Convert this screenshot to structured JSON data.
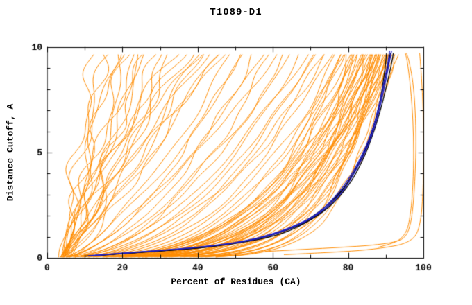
{
  "chart_data": {
    "type": "line",
    "title": "T1089-D1",
    "xlabel": "Percent of Residues (CA)",
    "ylabel": "Distance Cutoff, A",
    "xlim": [
      0,
      100
    ],
    "ylim": [
      0,
      10
    ],
    "x_ticks": [
      0,
      20,
      40,
      60,
      80,
      100
    ],
    "x_minor_ticks": [
      10,
      30,
      50,
      70,
      90
    ],
    "y_ticks": [
      0,
      5,
      10
    ],
    "y_minor_ticks": [
      1,
      2,
      3,
      4,
      6,
      7,
      8,
      9
    ],
    "grid": false,
    "legend": "none",
    "colors": {
      "orange": "#FF8C00",
      "black": "#000000",
      "blue": "#2121CC",
      "axis": "#000000",
      "background": "#FFFFFF"
    },
    "curves": [
      {
        "a": 3,
        "b": 13,
        "q": 1.0
      },
      {
        "a": 4,
        "b": 15,
        "q": 0.85
      },
      {
        "a": 3,
        "b": 16,
        "q": 1.2
      },
      {
        "a": 5,
        "b": 18,
        "q": 0.9
      },
      {
        "a": 3,
        "b": 19,
        "q": 1.1
      },
      {
        "a": 4,
        "b": 21,
        "q": 0.8
      },
      {
        "a": 3,
        "b": 22,
        "q": 1.0
      },
      {
        "a": 5,
        "b": 24,
        "q": 1.25
      },
      {
        "a": 4,
        "b": 25,
        "q": 0.75
      },
      {
        "a": 3,
        "b": 27,
        "q": 0.95
      },
      {
        "a": 4,
        "b": 28,
        "q": 1.15
      },
      {
        "a": 3,
        "b": 30,
        "q": 0.85
      },
      {
        "a": 5,
        "b": 31,
        "q": 1.05
      },
      {
        "a": 4,
        "b": 33,
        "q": 0.8
      },
      {
        "a": 3,
        "b": 35,
        "q": 1.2
      },
      {
        "a": 4,
        "b": 36,
        "q": 0.9
      },
      {
        "a": 3,
        "b": 38,
        "q": 1.0
      },
      {
        "a": 5,
        "b": 40,
        "q": 0.78
      },
      {
        "a": 4,
        "b": 41,
        "q": 1.1
      },
      {
        "a": 3,
        "b": 43,
        "q": 0.88
      },
      {
        "a": 4,
        "b": 44,
        "q": 1.0
      },
      {
        "a": 3,
        "b": 46,
        "q": 0.8
      },
      {
        "a": 5,
        "b": 47,
        "q": 1.15
      },
      {
        "a": 4,
        "b": 48,
        "q": 0.92
      },
      {
        "a": 3,
        "b": 50,
        "q": 0.7
      },
      {
        "a": 4,
        "b": 52,
        "q": 0.6
      },
      {
        "a": 3,
        "b": 54,
        "q": 0.72
      },
      {
        "a": 4,
        "b": 56,
        "q": 0.55
      },
      {
        "a": 3,
        "b": 58,
        "q": 0.65
      },
      {
        "a": 4,
        "b": 60,
        "q": 0.5
      },
      {
        "a": 3,
        "b": 62,
        "q": 0.68
      },
      {
        "a": 4,
        "b": 64,
        "q": 0.52
      },
      {
        "a": 3,
        "b": 66,
        "q": 0.6
      },
      {
        "a": 4,
        "b": 68,
        "q": 0.48
      },
      {
        "a": 3,
        "b": 70,
        "q": 0.55
      },
      {
        "a": 4,
        "b": 72,
        "q": 0.45
      },
      {
        "a": 3,
        "b": 73,
        "q": 0.5
      },
      {
        "a": 4,
        "b": 74,
        "q": 0.42
      },
      {
        "a": 3,
        "b": 75,
        "q": 0.47
      },
      {
        "a": 4,
        "b": 76,
        "q": 0.4
      },
      {
        "a": 3,
        "b": 78,
        "q": 0.38
      },
      {
        "a": 4,
        "b": 78.5,
        "q": 0.3
      },
      {
        "a": 3,
        "b": 79,
        "q": 0.34
      },
      {
        "a": 4,
        "b": 79.5,
        "q": 0.26
      },
      {
        "a": 3,
        "b": 80,
        "q": 0.36
      },
      {
        "a": 4,
        "b": 80.5,
        "q": 0.22
      },
      {
        "a": 3,
        "b": 81,
        "q": 0.32
      },
      {
        "a": 4,
        "b": 81.5,
        "q": 0.28
      },
      {
        "a": 3,
        "b": 82,
        "q": 0.2
      },
      {
        "a": 4,
        "b": 82.5,
        "q": 0.34
      },
      {
        "a": 3,
        "b": 83,
        "q": 0.25
      },
      {
        "a": 4,
        "b": 83.5,
        "q": 0.3
      },
      {
        "a": 3,
        "b": 84,
        "q": 0.18
      },
      {
        "a": 4,
        "b": 84.5,
        "q": 0.33
      },
      {
        "a": 3,
        "b": 85,
        "q": 0.24
      },
      {
        "a": 4,
        "b": 85.5,
        "q": 0.29
      },
      {
        "a": 3,
        "b": 86,
        "q": 0.16
      },
      {
        "a": 4,
        "b": 86.5,
        "q": 0.31
      },
      {
        "a": 3,
        "b": 87,
        "q": 0.22
      },
      {
        "a": 4,
        "b": 87.5,
        "q": 0.27
      },
      {
        "a": 3,
        "b": 88,
        "q": 0.15
      },
      {
        "a": 4,
        "b": 88,
        "q": 0.32
      },
      {
        "a": 3,
        "b": 88.5,
        "q": 0.2
      },
      {
        "a": 4,
        "b": 89,
        "q": 0.26
      },
      {
        "a": 3,
        "b": 89,
        "q": 0.35
      },
      {
        "a": 4,
        "b": 89.5,
        "q": 0.18
      },
      {
        "a": 3,
        "b": 90,
        "q": 0.24
      },
      {
        "a": 4,
        "b": 90,
        "q": 0.3
      },
      {
        "a": 3,
        "b": 90.5,
        "q": 0.16
      },
      {
        "a": 4,
        "b": 91,
        "q": 0.22
      },
      {
        "a": 3,
        "b": 91,
        "q": 0.28
      },
      {
        "a": 4,
        "b": 91.5,
        "q": 0.19
      },
      {
        "a": 3,
        "b": 92,
        "q": 0.25
      },
      {
        "a": 4,
        "b": 92,
        "q": 0.14
      },
      {
        "a": 3,
        "b": 92.5,
        "q": 0.21
      },
      {
        "a": 4,
        "b": 93,
        "q": 0.17
      },
      {
        "a": 3,
        "b": 93,
        "q": 0.27
      },
      {
        "a": 4,
        "b": 85,
        "q": 0.2
      },
      {
        "a": 3,
        "b": 86,
        "q": 0.36
      },
      {
        "a": 4,
        "b": 87,
        "q": 0.13
      },
      {
        "a": 3,
        "b": 88,
        "q": 0.24
      },
      {
        "a": 4,
        "b": 89.5,
        "q": 0.29
      },
      {
        "a": 3,
        "b": 90.5,
        "q": 0.2
      },
      {
        "a": 4,
        "b": 91.5,
        "q": 0.31
      },
      {
        "a": 3,
        "b": 92.5,
        "q": 0.15
      },
      {
        "pts": [
          [
            58,
            0.3
          ],
          [
            68,
            0.4
          ],
          [
            78,
            0.5
          ],
          [
            86,
            0.6
          ],
          [
            92,
            0.75
          ],
          [
            95,
            1.0
          ],
          [
            96.5,
            1.6
          ],
          [
            97.3,
            2.6
          ],
          [
            97.8,
            4
          ],
          [
            98,
            5.5
          ],
          [
            97.8,
            7
          ],
          [
            97.2,
            8.3
          ],
          [
            96.2,
            9.3
          ],
          [
            95.5,
            9.7
          ]
        ]
      },
      {
        "pts": [
          [
            63,
            0.15
          ],
          [
            74,
            0.25
          ],
          [
            83,
            0.35
          ],
          [
            90,
            0.5
          ],
          [
            95,
            0.7
          ],
          [
            98,
            1.1
          ],
          [
            99.3,
            1.9
          ],
          [
            99.8,
            3
          ],
          [
            100,
            4.5
          ],
          [
            100,
            6
          ],
          [
            99.8,
            7.5
          ],
          [
            99.4,
            8.8
          ],
          [
            99,
            9.7
          ]
        ]
      },
      {
        "pts": [
          [
            88,
            0.5
          ],
          [
            93,
            0.8
          ],
          [
            95.5,
            1.3
          ],
          [
            96.6,
            2.2
          ],
          [
            97.2,
            3.5
          ],
          [
            97.4,
            5
          ],
          [
            97.2,
            6.5
          ],
          [
            96.6,
            8
          ],
          [
            95.8,
            9.2
          ],
          [
            95.2,
            9.7
          ]
        ]
      },
      {
        "col": "black",
        "pts": [
          [
            10,
            0.08
          ],
          [
            20,
            0.2
          ],
          [
            32,
            0.35
          ],
          [
            44,
            0.55
          ],
          [
            54,
            0.85
          ],
          [
            62,
            1.25
          ],
          [
            69,
            1.8
          ],
          [
            75,
            2.6
          ],
          [
            80,
            3.6
          ],
          [
            83.5,
            4.7
          ],
          [
            86,
            5.8
          ],
          [
            87.8,
            6.9
          ],
          [
            89,
            8.0
          ],
          [
            89.8,
            9.0
          ],
          [
            90.2,
            9.7
          ]
        ]
      },
      {
        "col": "black",
        "pts": [
          [
            12,
            0.1
          ],
          [
            25,
            0.28
          ],
          [
            38,
            0.45
          ],
          [
            50,
            0.7
          ],
          [
            59,
            1.05
          ],
          [
            67,
            1.55
          ],
          [
            73,
            2.2
          ],
          [
            78,
            3.1
          ],
          [
            82,
            4.2
          ],
          [
            85,
            5.3
          ],
          [
            87,
            6.4
          ],
          [
            88.6,
            7.5
          ],
          [
            89.8,
            8.5
          ],
          [
            90.8,
            9.3
          ],
          [
            91.2,
            9.7
          ]
        ]
      },
      {
        "col": "black",
        "pts": [
          [
            14,
            0.12
          ],
          [
            28,
            0.3
          ],
          [
            42,
            0.5
          ],
          [
            54,
            0.8
          ],
          [
            63,
            1.2
          ],
          [
            70,
            1.8
          ],
          [
            76,
            2.6
          ],
          [
            81,
            3.7
          ],
          [
            84.5,
            4.9
          ],
          [
            87,
            6.1
          ],
          [
            89,
            7.3
          ],
          [
            90.5,
            8.4
          ],
          [
            91.5,
            9.2
          ],
          [
            92,
            9.7
          ]
        ]
      },
      {
        "col": "blue",
        "pts": [
          [
            11,
            0.1
          ],
          [
            22,
            0.25
          ],
          [
            35,
            0.42
          ],
          [
            47,
            0.65
          ],
          [
            56,
            0.95
          ],
          [
            64,
            1.4
          ],
          [
            71,
            2.0
          ],
          [
            76.5,
            2.9
          ],
          [
            81,
            4.0
          ],
          [
            84.5,
            5.2
          ],
          [
            86.8,
            6.3
          ],
          [
            88.4,
            7.4
          ],
          [
            89.6,
            8.4
          ],
          [
            90.5,
            9.2
          ],
          [
            91,
            9.8
          ]
        ]
      },
      {
        "col": "blue",
        "pts": [
          [
            12,
            0.1
          ],
          [
            24,
            0.27
          ],
          [
            37,
            0.45
          ],
          [
            49,
            0.68
          ],
          [
            58,
            1.0
          ],
          [
            66,
            1.5
          ],
          [
            72.5,
            2.15
          ],
          [
            78,
            3.05
          ],
          [
            82,
            4.15
          ],
          [
            85.3,
            5.35
          ],
          [
            87.5,
            6.5
          ],
          [
            89,
            7.6
          ],
          [
            90.2,
            8.6
          ],
          [
            91,
            9.35
          ],
          [
            91.5,
            9.8
          ]
        ]
      }
    ]
  }
}
